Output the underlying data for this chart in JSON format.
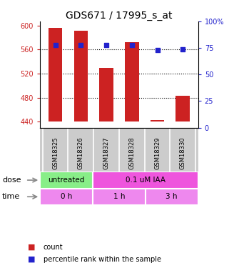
{
  "title": "GDS671 / 17995_s_at",
  "samples": [
    "GSM18325",
    "GSM18326",
    "GSM18327",
    "GSM18328",
    "GSM18329",
    "GSM18330"
  ],
  "bar_values": [
    596,
    591,
    530,
    572,
    443,
    483
  ],
  "percentile_values": [
    78,
    78,
    78,
    78,
    73,
    74
  ],
  "bar_bottom": 440,
  "ylim_left": [
    430,
    607
  ],
  "ylim_right": [
    0,
    100
  ],
  "yticks_left": [
    440,
    480,
    520,
    560,
    600
  ],
  "yticks_right": [
    0,
    25,
    50,
    75,
    100
  ],
  "bar_color": "#cc2222",
  "dot_color": "#2222cc",
  "dose_labels": [
    {
      "label": "untreated",
      "span": [
        0,
        2
      ],
      "color": "#88ee88"
    },
    {
      "label": "0.1 uM IAA",
      "span": [
        2,
        6
      ],
      "color": "#ee55dd"
    }
  ],
  "time_labels": [
    {
      "label": "0 h",
      "span": [
        0,
        2
      ],
      "color": "#ee88ee"
    },
    {
      "label": "1 h",
      "span": [
        2,
        4
      ],
      "color": "#ee88ee"
    },
    {
      "label": "3 h",
      "span": [
        4,
        6
      ],
      "color": "#ee88ee"
    }
  ],
  "xlabel_color": "#cc2222",
  "ylabel_right_color": "#2222cc",
  "grid_color": "black",
  "bg_color": "#ffffff",
  "tick_label_size": 7,
  "title_fontsize": 10,
  "bar_width": 0.55,
  "dot_size": 25
}
